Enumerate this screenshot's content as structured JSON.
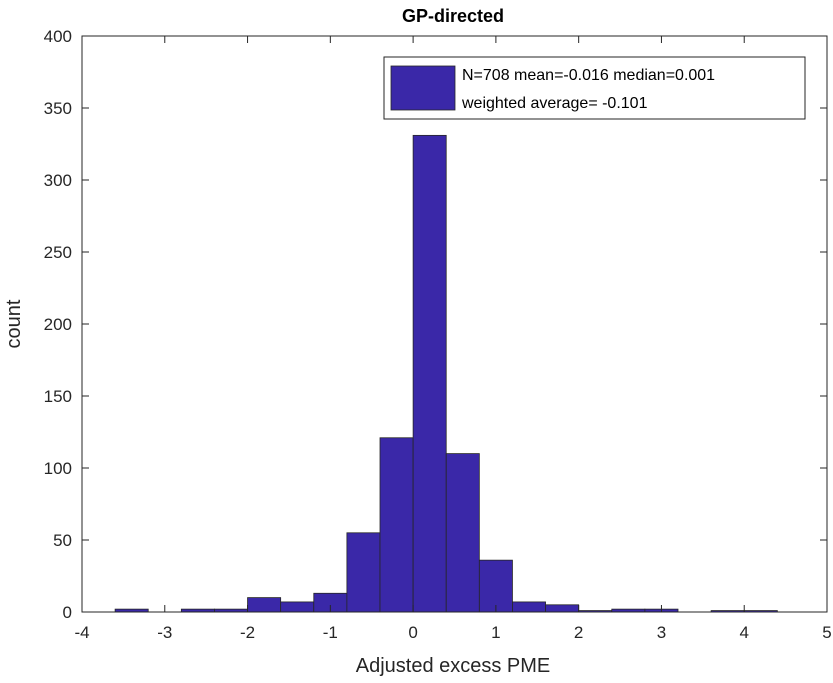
{
  "chart_data": {
    "type": "bar",
    "title": "GP-directed",
    "xlabel": "Adjusted excess PME",
    "ylabel": "count",
    "xlim": [
      -4,
      5
    ],
    "ylim": [
      0,
      400
    ],
    "xticks": [
      -4,
      -3,
      -2,
      -1,
      0,
      1,
      2,
      3,
      4,
      5
    ],
    "yticks": [
      0,
      50,
      100,
      150,
      200,
      250,
      300,
      350,
      400
    ],
    "bin_edges": [
      -3.6,
      -3.2,
      -2.8,
      -2.4,
      -2.0,
      -1.6,
      -1.2,
      -0.8,
      -0.4,
      0.0,
      0.4,
      0.8,
      1.2,
      1.6,
      2.0,
      2.4,
      2.8,
      3.2,
      3.6,
      4.0,
      4.4,
      4.8
    ],
    "values": [
      2,
      0,
      2,
      2,
      10,
      7,
      13,
      55,
      121,
      331,
      110,
      36,
      7,
      5,
      1,
      2,
      2,
      0,
      1,
      1,
      0
    ],
    "bar_color": "#3a28a8",
    "legend": {
      "position": "top-right",
      "line1": "N=708 mean=-0.016 median=0.001",
      "line2": "weighted average= -0.101"
    },
    "grid": false
  }
}
